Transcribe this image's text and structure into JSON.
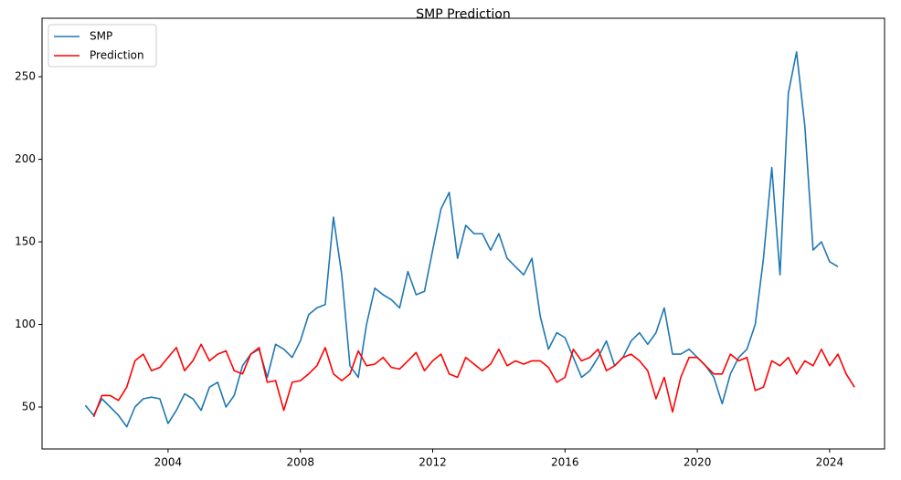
{
  "chart_data": {
    "type": "line",
    "title": "SMP Prediction",
    "x": [
      2001.5,
      2001.75,
      2002,
      2002.25,
      2002.5,
      2002.75,
      2003,
      2003.25,
      2003.5,
      2003.75,
      2004,
      2004.25,
      2004.5,
      2004.75,
      2005,
      2005.25,
      2005.5,
      2005.75,
      2006,
      2006.25,
      2006.5,
      2006.75,
      2007,
      2007.25,
      2007.5,
      2007.75,
      2008,
      2008.25,
      2008.5,
      2008.75,
      2009,
      2009.25,
      2009.5,
      2009.75,
      2010,
      2010.25,
      2010.5,
      2010.75,
      2011,
      2011.25,
      2011.5,
      2011.75,
      2012,
      2012.25,
      2012.5,
      2012.75,
      2013,
      2013.25,
      2013.5,
      2013.75,
      2014,
      2014.25,
      2014.5,
      2014.75,
      2015,
      2015.25,
      2015.5,
      2015.75,
      2016,
      2016.25,
      2016.5,
      2016.75,
      2017,
      2017.25,
      2017.5,
      2017.75,
      2018,
      2018.25,
      2018.5,
      2018.75,
      2019,
      2019.25,
      2019.5,
      2019.75,
      2020,
      2020.25,
      2020.5,
      2020.75,
      2021,
      2021.25,
      2021.5,
      2021.75,
      2022,
      2022.25,
      2022.5,
      2022.75,
      2023,
      2023.25,
      2023.5,
      2023.75,
      2024,
      2024.25,
      2024.5,
      2024.75
    ],
    "series": [
      {
        "name": "SMP",
        "color": "#1f77b4",
        "values": [
          51,
          45,
          55,
          50,
          45,
          38,
          50,
          55,
          56,
          55,
          40,
          48,
          58,
          55,
          48,
          62,
          65,
          50,
          57,
          75,
          82,
          85,
          68,
          88,
          85,
          80,
          90,
          106,
          110,
          112,
          165,
          130,
          75,
          68,
          100,
          122,
          118,
          115,
          110,
          132,
          118,
          120,
          145,
          170,
          180,
          140,
          160,
          155,
          155,
          145,
          155,
          140,
          135,
          130,
          140,
          105,
          85,
          95,
          92,
          80,
          68,
          72,
          80,
          90,
          75,
          80,
          90,
          95,
          88,
          95,
          110,
          82,
          82,
          85,
          80,
          75,
          68,
          52,
          70,
          80,
          85,
          100,
          140,
          195,
          130,
          240,
          265,
          220,
          145,
          150,
          138,
          135,
          null,
          null
        ]
      },
      {
        "name": "Prediction",
        "color": "#ff0000",
        "values": [
          null,
          44,
          57,
          57,
          54,
          62,
          78,
          82,
          72,
          74,
          80,
          86,
          72,
          78,
          88,
          78,
          82,
          84,
          72,
          70,
          82,
          86,
          65,
          66,
          48,
          65,
          66,
          70,
          75,
          86,
          70,
          66,
          70,
          84,
          75,
          76,
          80,
          74,
          73,
          78,
          83,
          72,
          78,
          82,
          70,
          68,
          80,
          76,
          72,
          76,
          85,
          75,
          78,
          76,
          78,
          78,
          74,
          65,
          68,
          85,
          78,
          80,
          85,
          72,
          75,
          80,
          82,
          78,
          72,
          55,
          68,
          47,
          68,
          80,
          80,
          75,
          70,
          70,
          82,
          78,
          80,
          60,
          62,
          78,
          75,
          80,
          70,
          78,
          75,
          85,
          75,
          82,
          70,
          62
        ]
      }
    ],
    "xlim": [
      2000.19,
      2025.66
    ],
    "xticks": [
      2004,
      2008,
      2012,
      2016,
      2020,
      2024
    ],
    "ylim": [
      24.6,
      285.4
    ],
    "yticks": [
      50,
      100,
      150,
      200,
      250
    ],
    "grid": false,
    "legend": "upper left"
  }
}
